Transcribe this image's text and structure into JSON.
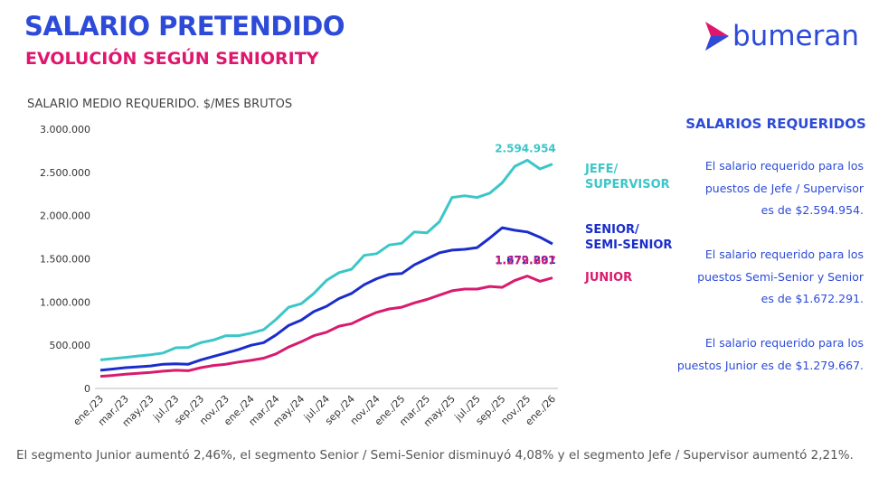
{
  "header": {
    "title": "SALARIO PRETENDIDO",
    "subtitle": "EVOLUCIÓN SEGÚN SENIORITY",
    "logo": "bumeran"
  },
  "chart_data": {
    "type": "line",
    "y_label": "SALARIO MEDIO REQUERIDO. $/MES BRUTOS",
    "categories": [
      "ene./23",
      null,
      "mar./23",
      null,
      "may./23",
      null,
      "jul./23",
      null,
      "sep./23",
      null,
      "nov./23",
      null,
      "ene./24",
      null,
      "mar./24",
      null,
      "may./24",
      null,
      "jul./24",
      null,
      "sep./24",
      null,
      "nov./24",
      null,
      "ene./25",
      null,
      "mar./25",
      null,
      "may./25",
      null,
      "jul./25",
      null,
      "sep./25",
      null,
      "nov./25",
      null,
      "ene./26"
    ],
    "ylim": [
      0,
      3000000
    ],
    "yticks": [
      0,
      {
        "value": 500000,
        "label": "500.000"
      },
      {
        "value": 1000000,
        "label": "1.000.000"
      },
      {
        "value": 1500000,
        "label": "1.500.000"
      },
      {
        "value": 2000000,
        "label": "2.000.000"
      },
      {
        "value": 2500000,
        "label": "2.500.000"
      },
      {
        "value": 3000000,
        "label": "3.000.000"
      }
    ],
    "series": [
      {
        "name": "JEFE/\nSUPERVISOR",
        "color": "#3cc6c8",
        "values": [
          330000,
          345000,
          360000,
          375000,
          390000,
          410000,
          470000,
          475000,
          530000,
          560000,
          610000,
          610000,
          640000,
          680000,
          800000,
          940000,
          980000,
          1100000,
          1250000,
          1340000,
          1380000,
          1540000,
          1560000,
          1660000,
          1680000,
          1810000,
          1800000,
          1930000,
          2210000,
          2230000,
          2210000,
          2260000,
          2380000,
          2570000,
          2640000,
          2540000,
          2594954
        ],
        "value_labels": [
          null,
          null,
          null,
          null,
          null,
          null,
          null,
          null,
          null,
          null,
          null,
          null,
          null,
          null,
          null,
          null,
          null,
          null,
          null,
          null,
          null,
          null,
          null,
          null,
          null,
          null,
          null,
          null,
          null,
          null,
          null,
          null,
          null,
          null,
          null,
          null,
          "2.594.954"
        ]
      },
      {
        "name": "SENIOR/\nSEMI-SENIOR",
        "color": "#1a2dcc",
        "values": [
          210000,
          225000,
          240000,
          250000,
          260000,
          280000,
          285000,
          280000,
          330000,
          370000,
          410000,
          450000,
          500000,
          530000,
          620000,
          730000,
          790000,
          890000,
          950000,
          1040000,
          1100000,
          1200000,
          1270000,
          1320000,
          1330000,
          1430000,
          1500000,
          1570000,
          1600000,
          1610000,
          1630000,
          1740000,
          1860000,
          1830000,
          1810000,
          1750000,
          1672291
        ],
        "value_labels": [
          null,
          null,
          null,
          null,
          null,
          null,
          null,
          null,
          null,
          null,
          null,
          null,
          null,
          null,
          null,
          null,
          null,
          null,
          null,
          null,
          null,
          null,
          null,
          null,
          null,
          null,
          null,
          null,
          null,
          null,
          null,
          null,
          null,
          null,
          null,
          null,
          "1.672.291"
        ]
      },
      {
        "name": "JUNIOR",
        "color": "#d81b6e",
        "values": [
          140000,
          150000,
          165000,
          175000,
          185000,
          200000,
          210000,
          205000,
          240000,
          265000,
          280000,
          305000,
          325000,
          350000,
          400000,
          480000,
          540000,
          610000,
          650000,
          720000,
          750000,
          820000,
          880000,
          920000,
          940000,
          990000,
          1030000,
          1080000,
          1130000,
          1150000,
          1150000,
          1180000,
          1170000,
          1250000,
          1300000,
          1240000,
          1279667
        ],
        "value_labels": [
          null,
          null,
          null,
          null,
          null,
          null,
          null,
          null,
          null,
          null,
          null,
          null,
          null,
          null,
          null,
          null,
          null,
          null,
          null,
          null,
          null,
          null,
          null,
          null,
          null,
          null,
          null,
          null,
          null,
          null,
          null,
          null,
          null,
          null,
          null,
          null,
          "1.279.667"
        ]
      }
    ]
  },
  "side": {
    "title": "SALARIOS REQUERIDOS",
    "paragraphs": [
      [
        "El salario requerido para los",
        "puestos de Jefe / Supervisor",
        "es de $2.594.954."
      ],
      [
        "El salario requerido para los",
        "puestos Semi-Senior y Senior",
        "es de $1.672.291."
      ],
      [
        "El salario requerido para los",
        "puestos Junior es de $1.279.667."
      ]
    ]
  },
  "footnote": "El segmento Junior aumentó 2,46%, el segmento Senior / Semi-Senior disminuyó 4,08% y el segmento Jefe / Supervisor aumentó 2,21%."
}
